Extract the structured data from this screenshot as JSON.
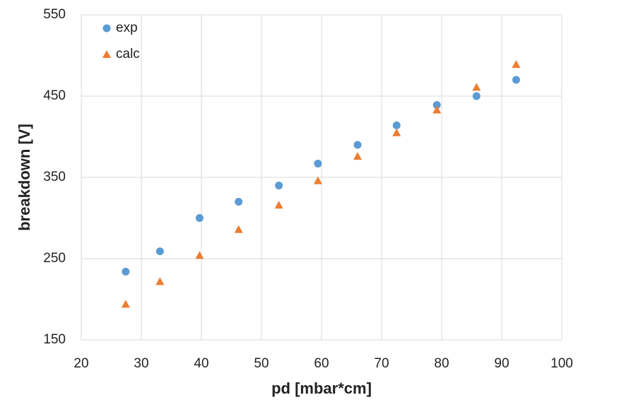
{
  "chart_data": {
    "type": "scatter",
    "x_label": "pd [mbar*cm]",
    "y_label": "breakdown [V]",
    "xlim": [
      20,
      100
    ],
    "xticks": [
      20,
      30,
      40,
      50,
      60,
      70,
      80,
      90,
      100
    ],
    "ylim": [
      150,
      550
    ],
    "yticks": [
      150,
      250,
      350,
      450,
      550
    ],
    "grid": true,
    "legend": "top-left",
    "series": [
      {
        "name": "exp",
        "color": "#5b9bd5",
        "marker": "circle",
        "x": [
          27.4,
          33.1,
          39.7,
          46.2,
          52.9,
          59.4,
          66.0,
          72.5,
          79.2,
          85.8,
          92.4
        ],
        "values": [
          234,
          259,
          300,
          320,
          340,
          367,
          390,
          414,
          439,
          450,
          470
        ]
      },
      {
        "name": "calc",
        "color": "#ed7d31",
        "marker": "triangle",
        "x": [
          27.4,
          33.1,
          39.7,
          46.2,
          52.9,
          59.4,
          66.0,
          72.5,
          79.2,
          85.8,
          92.4
        ],
        "values": [
          194,
          222,
          254,
          286,
          316,
          346,
          376,
          405,
          433,
          461,
          489
        ]
      }
    ]
  }
}
